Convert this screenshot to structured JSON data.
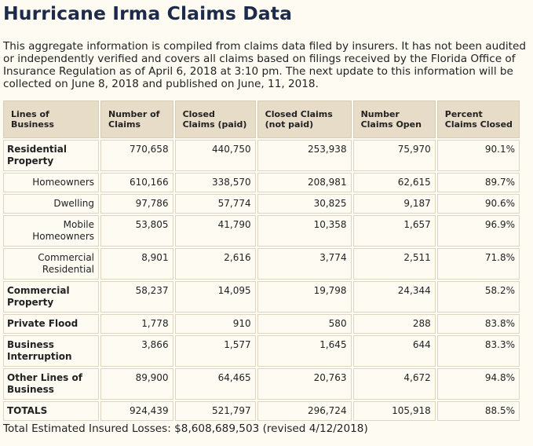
{
  "title": "Hurricane Irma Claims Data",
  "intro": "This aggregate information is compiled from claims data filed by insurers. It has not been audited or independently verified and covers all claims based on filings received by the Florida Office of Insurance Regulation as of April 6, 2018 at 3:10 pm. The next update to this information will be collected on June 8, 2018 and published on June, 11, 2018.",
  "table": {
    "headers": [
      "Lines of Business",
      "Number of Claims",
      "Closed Claims (paid)",
      "Closed Claims (not paid)",
      "Number Claims Open",
      "Percent Claims Closed"
    ],
    "rows": [
      {
        "label": "Residential Property",
        "kind": "cat",
        "values": [
          "770,658",
          "440,750",
          "253,938",
          "75,970",
          "90.1%"
        ]
      },
      {
        "label": "Homeowners",
        "kind": "sub",
        "values": [
          "610,166",
          "338,570",
          "208,981",
          "62,615",
          "89.7%"
        ]
      },
      {
        "label": "Dwelling",
        "kind": "sub",
        "values": [
          "97,786",
          "57,774",
          "30,825",
          "9,187",
          "90.6%"
        ]
      },
      {
        "label": "Mobile Homeowners",
        "kind": "sub",
        "values": [
          "53,805",
          "41,790",
          "10,358",
          "1,657",
          "96.9%"
        ]
      },
      {
        "label": "Commercial Residential",
        "kind": "sub",
        "values": [
          "8,901",
          "2,616",
          "3,774",
          "2,511",
          "71.8%"
        ]
      },
      {
        "label": "Commercial Property",
        "kind": "cat",
        "values": [
          "58,237",
          "14,095",
          "19,798",
          "24,344",
          "58.2%"
        ]
      },
      {
        "label": "Private Flood",
        "kind": "cat",
        "values": [
          "1,778",
          "910",
          "580",
          "288",
          "83.8%"
        ]
      },
      {
        "label": "Business Interruption",
        "kind": "cat",
        "values": [
          "3,866",
          "1,577",
          "1,645",
          "644",
          "83.3%"
        ]
      },
      {
        "label": "Other Lines of Business",
        "kind": "cat",
        "values": [
          "89,900",
          "64,465",
          "20,763",
          "4,672",
          "94.8%"
        ]
      },
      {
        "label": "TOTALS",
        "kind": "cat",
        "values": [
          "924,439",
          "521,797",
          "296,724",
          "105,918",
          "88.5%"
        ]
      }
    ]
  },
  "footer": "Total Estimated Insured Losses: $8,608,689,503 (revised 4/12/2018)"
}
